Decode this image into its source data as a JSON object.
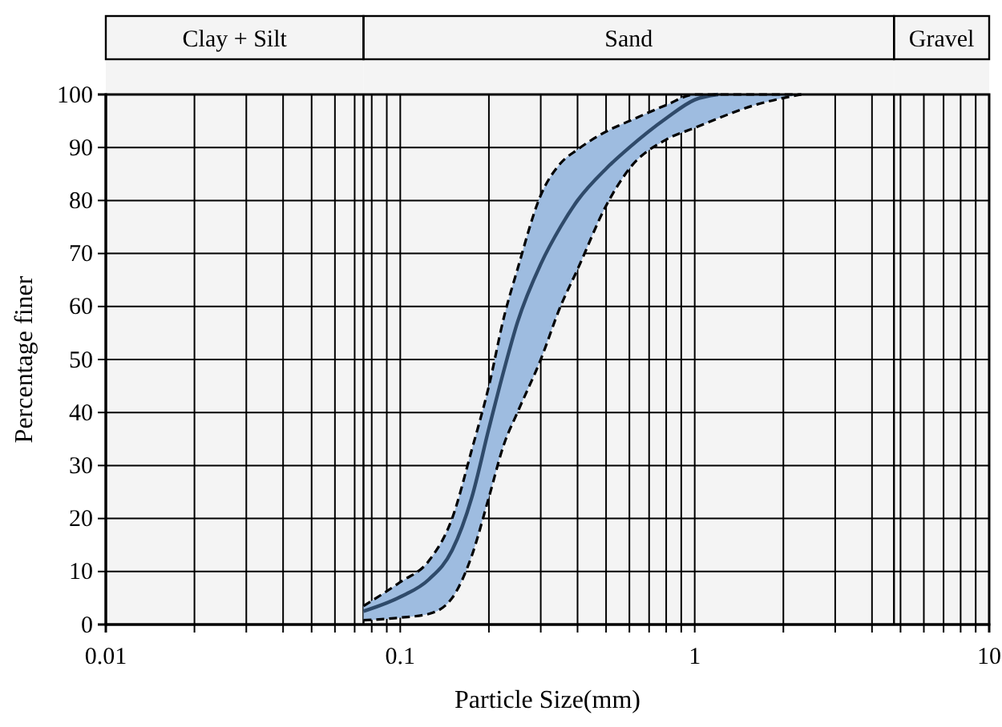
{
  "chart_data": {
    "type": "line",
    "xlabel": "Particle Size(mm)",
    "ylabel": "Percentage finer",
    "log": "x",
    "x": [
      0.075,
      0.1,
      0.125,
      0.15,
      0.175,
      0.2,
      0.225,
      0.25,
      0.3,
      0.35,
      0.4,
      0.5,
      0.6,
      0.8,
      1,
      1.2,
      1.6,
      2.3
    ],
    "series": [
      {
        "color": "#2f4a6a",
        "values": [
          2.5,
          5.2,
          8.5,
          14,
          24,
          37,
          48,
          57,
          68,
          75,
          80,
          86,
          90,
          95.5,
          99,
          100,
          null,
          null
        ],
        "upper": [
          3.5,
          8,
          12,
          20,
          33,
          45,
          58,
          67,
          81,
          87,
          89.6,
          93,
          95,
          98,
          100,
          100,
          100,
          100
        ],
        "lower": [
          0.8,
          1.3,
          2,
          5,
          13,
          24,
          34,
          40,
          50,
          60,
          67,
          79,
          86,
          91.5,
          93.7,
          95.5,
          98,
          100
        ]
      },
      {
        "color": "#000000",
        "line_style": "dashed",
        "values": [
          3.5,
          8,
          12,
          20,
          33,
          45,
          58,
          67,
          81,
          87,
          89.6,
          93,
          95,
          98,
          100,
          100,
          100,
          100
        ]
      },
      {
        "color": "#000000",
        "line_style": "dashed",
        "values": [
          0.8,
          1.3,
          2,
          5,
          13,
          24,
          34,
          40,
          50,
          60,
          67,
          79,
          86,
          91.5,
          93.7,
          95.5,
          98,
          100
        ]
      }
    ],
    "xlim": [
      0.01,
      10
    ],
    "xticks": [
      0.01,
      {
        "value": 0.02,
        "label": null
      },
      {
        "value": 0.03,
        "label": null
      },
      {
        "value": 0.04,
        "label": null
      },
      {
        "value": 0.05,
        "label": null
      },
      {
        "value": 0.06,
        "label": null
      },
      {
        "value": 0.07,
        "label": null
      },
      {
        "value": 0.08,
        "label": null
      },
      {
        "value": 0.09,
        "label": null
      },
      0.1,
      {
        "value": 0.2,
        "label": null
      },
      {
        "value": 0.3,
        "label": null
      },
      {
        "value": 0.4,
        "label": null
      },
      {
        "value": 0.5,
        "label": null
      },
      {
        "value": 0.6,
        "label": null
      },
      {
        "value": 0.7,
        "label": null
      },
      {
        "value": 0.8,
        "label": null
      },
      {
        "value": 0.9,
        "label": null
      },
      1,
      {
        "value": 2,
        "label": null
      },
      {
        "value": 3,
        "label": null
      },
      {
        "value": 4,
        "label": null
      },
      {
        "value": 5,
        "label": null
      },
      {
        "value": 6,
        "label": null
      },
      {
        "value": 7,
        "label": null
      },
      {
        "value": 8,
        "label": null
      },
      {
        "value": 9,
        "label": null
      },
      10
    ],
    "ylim": [
      0,
      100
    ],
    "yticks": [
      0,
      10,
      20,
      30,
      40,
      50,
      60,
      70,
      80,
      90,
      100
    ],
    "grid": true,
    "line_style": "solid",
    "marker": "none",
    "bands": [
      {
        "axis": "x",
        "from": 0.01,
        "to": 0.075,
        "label": "Clay + Silt",
        "color": "#f4f4f4"
      },
      {
        "axis": "x",
        "from": 0.075,
        "to": 4.75,
        "label": "Sand",
        "color": "#f4f4f4"
      },
      {
        "axis": "x",
        "from": 4.75,
        "to": 10,
        "label": "Gravel",
        "color": "#f4f4f4"
      }
    ]
  }
}
